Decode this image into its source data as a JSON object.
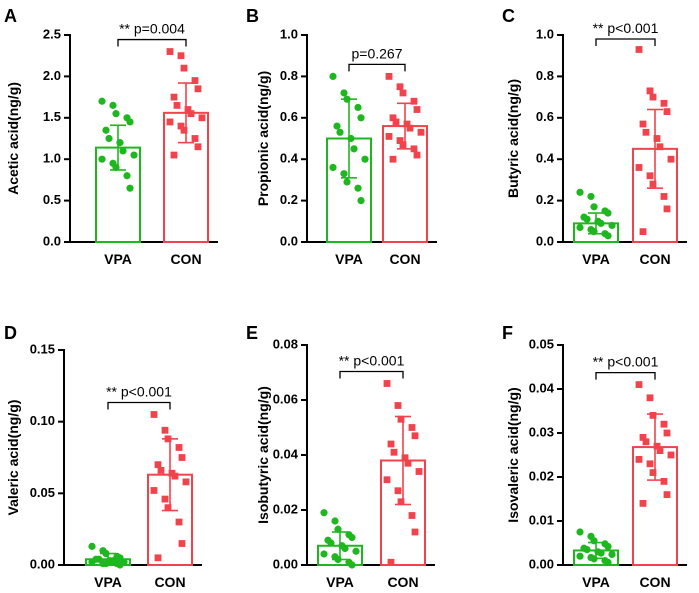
{
  "chart_data": [
    {
      "panel": "A",
      "type": "bar",
      "ylabel": "Acetic acid(ng/g)",
      "categories": [
        "VPA",
        "CON"
      ],
      "means": [
        1.14,
        1.56
      ],
      "sd": [
        0.27,
        0.36
      ],
      "ylim": [
        0,
        2.5
      ],
      "yticks": [
        "0.0",
        "0.5",
        "1.0",
        "1.5",
        "2.0",
        "2.5"
      ],
      "significance": "** p=0.004",
      "points": [
        [
          1.7,
          1.65,
          1.55,
          1.5,
          1.45,
          1.35,
          1.25,
          1.2,
          1.1,
          1.05,
          1.0,
          0.95,
          0.9,
          0.8,
          0.65
        ],
        [
          2.3,
          2.25,
          2.1,
          1.95,
          1.85,
          1.75,
          1.65,
          1.6,
          1.55,
          1.5,
          1.45,
          1.4,
          1.35,
          1.25,
          1.15,
          1.05
        ]
      ]
    },
    {
      "panel": "B",
      "type": "bar",
      "ylabel": "Propionic acid(ng/g)",
      "categories": [
        "VPA",
        "CON"
      ],
      "means": [
        0.5,
        0.56
      ],
      "sd": [
        0.19,
        0.11
      ],
      "ylim": [
        0,
        1.0
      ],
      "yticks": [
        "0.0",
        "0.2",
        "0.4",
        "0.6",
        "0.8",
        "1.0"
      ],
      "significance": "p=0.267",
      "points": [
        [
          0.8,
          0.72,
          0.69,
          0.65,
          0.6,
          0.56,
          0.53,
          0.5,
          0.45,
          0.4,
          0.36,
          0.33,
          0.29,
          0.26,
          0.2
        ],
        [
          0.8,
          0.75,
          0.72,
          0.68,
          0.64,
          0.6,
          0.58,
          0.57,
          0.55,
          0.53,
          0.51,
          0.49,
          0.47,
          0.45,
          0.42,
          0.4
        ]
      ]
    },
    {
      "panel": "C",
      "type": "bar",
      "ylabel": "Butyric acid(ng/g)",
      "categories": [
        "VPA",
        "CON"
      ],
      "means": [
        0.09,
        0.45
      ],
      "sd": [
        0.05,
        0.19
      ],
      "ylim": [
        0,
        1.0
      ],
      "yticks": [
        "0.0",
        "0.2",
        "0.4",
        "0.6",
        "0.8",
        "1.0"
      ],
      "significance": "** p<0.001",
      "points": [
        [
          0.24,
          0.22,
          0.17,
          0.15,
          0.14,
          0.12,
          0.11,
          0.1,
          0.09,
          0.08,
          0.07,
          0.06,
          0.05,
          0.04,
          0.03
        ],
        [
          0.93,
          0.73,
          0.7,
          0.67,
          0.63,
          0.57,
          0.53,
          0.5,
          0.46,
          0.4,
          0.36,
          0.32,
          0.28,
          0.22,
          0.16,
          0.05
        ]
      ]
    },
    {
      "panel": "D",
      "type": "bar",
      "ylabel": "Valeric acid(ng/g)",
      "categories": [
        "VPA",
        "CON"
      ],
      "means": [
        0.004,
        0.063
      ],
      "sd": [
        0.004,
        0.025
      ],
      "ylim": [
        0,
        0.15
      ],
      "yticks": [
        "0.00",
        "0.05",
        "0.10",
        "0.15"
      ],
      "significance": "** p<0.001",
      "points": [
        [
          0.013,
          0.01,
          0.008,
          0.006,
          0.005,
          0.004,
          0.004,
          0.003,
          0.003,
          0.002,
          0.002,
          0.001,
          0.001,
          0.001,
          0.0
        ],
        [
          0.105,
          0.094,
          0.088,
          0.082,
          0.075,
          0.07,
          0.066,
          0.064,
          0.062,
          0.058,
          0.052,
          0.046,
          0.04,
          0.03,
          0.015,
          0.005
        ]
      ]
    },
    {
      "panel": "E",
      "type": "bar",
      "ylabel": "Isobutyric acid(ng/g)",
      "categories": [
        "VPA",
        "CON"
      ],
      "means": [
        0.007,
        0.038
      ],
      "sd": [
        0.005,
        0.016
      ],
      "ylim": [
        0,
        0.08
      ],
      "yticks": [
        "0.00",
        "0.02",
        "0.04",
        "0.06",
        "0.08"
      ],
      "significance": "** p<0.001",
      "points": [
        [
          0.019,
          0.016,
          0.013,
          0.011,
          0.01,
          0.009,
          0.008,
          0.007,
          0.006,
          0.005,
          0.004,
          0.003,
          0.002,
          0.001,
          0.0
        ],
        [
          0.066,
          0.058,
          0.053,
          0.05,
          0.047,
          0.044,
          0.041,
          0.039,
          0.037,
          0.034,
          0.031,
          0.027,
          0.023,
          0.018,
          0.012,
          0.001
        ]
      ]
    },
    {
      "panel": "F",
      "type": "bar",
      "ylabel": "Isovaleric acid(ng/g)",
      "categories": [
        "VPA",
        "CON"
      ],
      "means": [
        0.0033,
        0.0268
      ],
      "sd": [
        0.0018,
        0.0075
      ],
      "ylim": [
        0,
        0.05
      ],
      "yticks": [
        "0.00",
        "0.01",
        "0.02",
        "0.03",
        "0.04",
        "0.05"
      ],
      "significance": "** p<0.001",
      "points": [
        [
          0.0075,
          0.0065,
          0.0055,
          0.0048,
          0.0042,
          0.0038,
          0.0035,
          0.003,
          0.0027,
          0.0024,
          0.002,
          0.0017,
          0.0014,
          0.001,
          0.0006
        ],
        [
          0.041,
          0.038,
          0.034,
          0.032,
          0.03,
          0.029,
          0.028,
          0.027,
          0.026,
          0.025,
          0.024,
          0.023,
          0.021,
          0.019,
          0.016,
          0.014
        ]
      ]
    }
  ],
  "colors": {
    "vpa": "#1fb71f",
    "con": "#f1434b",
    "axis": "#000000"
  }
}
